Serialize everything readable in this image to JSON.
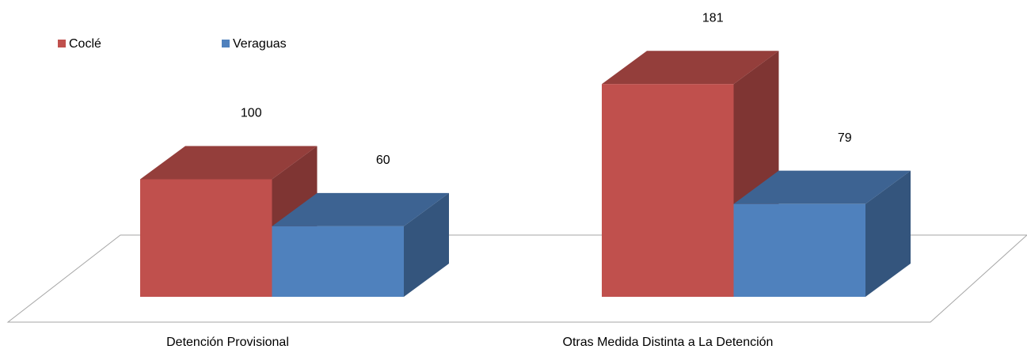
{
  "chart_data": {
    "type": "bar3d",
    "categories": [
      "Detención Provisional",
      "Otras Medida Distinta a La Detención"
    ],
    "series": [
      {
        "name": "Coclé",
        "color": "#c0504d",
        "values": [
          100,
          181
        ]
      },
      {
        "name": "Veraguas",
        "color": "#4f81bd",
        "values": [
          60,
          79
        ]
      }
    ],
    "legend": "top-left"
  }
}
